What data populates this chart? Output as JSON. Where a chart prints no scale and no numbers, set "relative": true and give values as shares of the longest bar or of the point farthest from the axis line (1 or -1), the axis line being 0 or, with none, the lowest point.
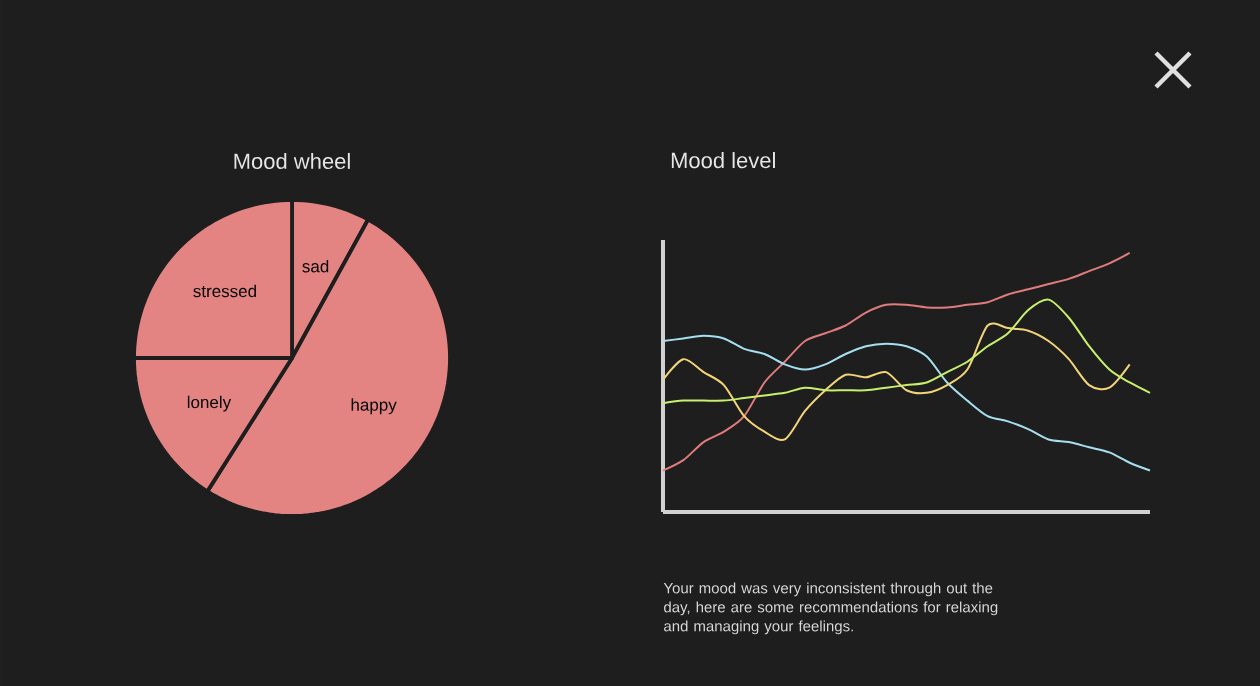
{
  "chart_data": [
    {
      "type": "pie",
      "title": "Mood wheel",
      "categories": [
        "sad",
        "happy",
        "lonely",
        "stressed"
      ],
      "values": [
        8,
        51,
        16,
        25
      ],
      "colors": [
        "#e38482",
        "#e38482",
        "#e38482",
        "#e38482"
      ]
    },
    {
      "type": "line",
      "title": "Mood level",
      "relative": true,
      "categories": [
        null,
        null,
        null,
        null,
        null,
        null,
        null,
        null,
        null,
        null,
        null,
        null,
        null,
        null,
        null,
        null,
        null,
        null,
        null,
        null,
        null,
        null,
        null,
        null,
        null
      ],
      "series": [
        {
          "color": "#e07c7c",
          "values": [
            0.16,
            0.2,
            0.27,
            0.31,
            0.37,
            0.5,
            0.58,
            0.66,
            0.69,
            0.72,
            0.77,
            0.8,
            0.8,
            0.79,
            0.79,
            0.8,
            0.81,
            0.84,
            0.86,
            0.88,
            0.9,
            0.93,
            0.96,
            1.0,
            null
          ]
        },
        {
          "color": "#a6dff0",
          "values": [
            0.66,
            0.67,
            0.68,
            0.67,
            0.63,
            0.61,
            0.57,
            0.55,
            0.57,
            0.61,
            0.64,
            0.65,
            0.64,
            0.6,
            0.5,
            0.43,
            0.37,
            0.35,
            0.32,
            0.28,
            0.27,
            0.25,
            0.23,
            0.19,
            0.16
          ]
        },
        {
          "color": "#f2d57a",
          "values": [
            0.51,
            0.59,
            0.54,
            0.49,
            0.37,
            0.31,
            0.28,
            0.39,
            0.47,
            0.53,
            0.52,
            0.54,
            0.47,
            0.46,
            0.49,
            0.55,
            0.72,
            0.71,
            0.7,
            0.66,
            0.59,
            0.49,
            0.48,
            0.57,
            null
          ]
        },
        {
          "color": "#c8f06e",
          "values": [
            0.42,
            0.43,
            0.43,
            0.43,
            0.44,
            0.45,
            0.46,
            0.48,
            0.47,
            0.47,
            0.47,
            0.48,
            0.49,
            0.5,
            0.54,
            0.58,
            0.64,
            0.69,
            0.78,
            0.82,
            0.75,
            0.64,
            0.55,
            0.5,
            0.46
          ]
        }
      ],
      "annotations": [
        "Your mood was very inconsistent through out the day,  here are some recommendations for relaxing and managing your feelings."
      ]
    }
  ]
}
